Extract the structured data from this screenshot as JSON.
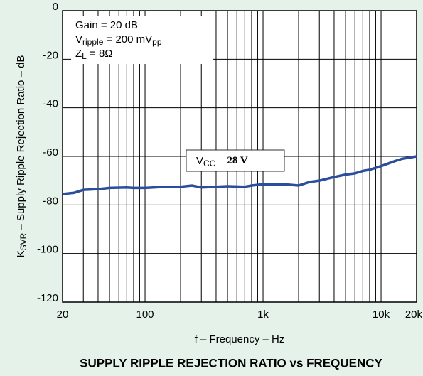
{
  "chart_data": {
    "type": "line",
    "title": "SUPPLY RIPPLE REJECTION RATIO vs FREQUENCY",
    "xlabel": "f – Frequency – Hz",
    "ylabel": [
      {
        "t": "K"
      },
      {
        "t": "SVR",
        "sub": true
      },
      {
        "t": " – Supply Ripple Rejection Ratio – dB"
      }
    ],
    "xscale": "log",
    "xlim": [
      20,
      20000
    ],
    "ylim": [
      -120,
      0
    ],
    "xticks": [
      20,
      100,
      {
        "value": 1000,
        "label": "1k"
      },
      {
        "value": 10000,
        "label": "10k"
      },
      {
        "value": 20000,
        "label": "20k"
      }
    ],
    "xminor_ticks": [
      30,
      40,
      50,
      60,
      70,
      80,
      90,
      200,
      300,
      400,
      500,
      600,
      700,
      800,
      900,
      2000,
      3000,
      4000,
      5000,
      6000,
      7000,
      8000,
      9000
    ],
    "yticks": [
      0,
      -20,
      -40,
      -60,
      -80,
      -100,
      -120
    ],
    "grid": true,
    "annotations": [
      [
        {
          "t": "Gain = 20 dB"
        }
      ],
      [
        {
          "t": "V"
        },
        {
          "t": "ripple",
          "sub": true
        },
        {
          "t": " = 200 mV"
        },
        {
          "t": "pp",
          "sub": true
        }
      ],
      [
        {
          "t": "Z"
        },
        {
          "t": "L",
          "sub": true
        },
        {
          "t": " = 8Ω"
        }
      ]
    ],
    "series": [
      {
        "name": [
          {
            "t": "V"
          },
          {
            "t": "CC",
            "sub": true
          },
          {
            "t": " = 28 V",
            "bold": true
          }
        ],
        "color": "#2a4d9c",
        "x": [
          20,
          25,
          30,
          40,
          50,
          70,
          80,
          100,
          150,
          200,
          250,
          300,
          400,
          500,
          700,
          800,
          1000,
          1500,
          2000,
          2500,
          3000,
          4000,
          5000,
          6000,
          7000,
          8000,
          10000,
          13000,
          15000,
          20000
        ],
        "values": [
          -75.5,
          -75,
          -73.8,
          -73.5,
          -73,
          -72.8,
          -73,
          -73,
          -72.5,
          -72.5,
          -72,
          -72.8,
          -72.5,
          -72.3,
          -72.5,
          -72,
          -71.5,
          -71.5,
          -72,
          -70.5,
          -70,
          -68.5,
          -67.5,
          -67,
          -66,
          -65.5,
          -64,
          -62,
          -61,
          -60
        ]
      }
    ]
  }
}
